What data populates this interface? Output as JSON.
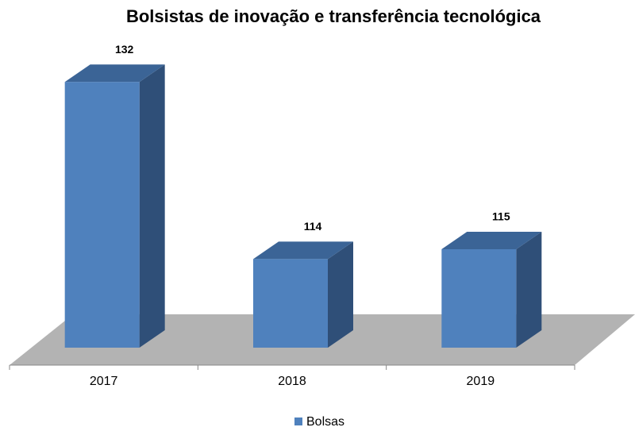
{
  "chart_data": {
    "type": "bar",
    "title": "Bolsistas de inovação e transferência tecnológica",
    "categories": [
      "2017",
      "2018",
      "2019"
    ],
    "series": [
      {
        "name": "Bolsas",
        "color": "#4f81bd",
        "values": [
          132,
          114,
          115
        ]
      }
    ],
    "ylim": [
      105,
      135
    ],
    "legend": "bottom"
  }
}
